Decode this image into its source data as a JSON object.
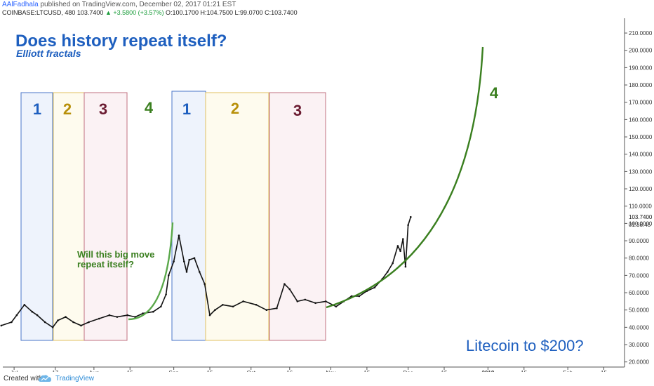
{
  "header": {
    "author": "AAlFadhala",
    "published": "published on TradingView.com, December 02, 2017 01:21 EST",
    "symbol": "COINBASE:LTCUSD, 480",
    "last": "103.7400",
    "change": "+3.5800 (+3.57%)",
    "ohlc": "O:100.1700 H:104.7500 L:99.0700 C:103.7400"
  },
  "footer": {
    "created_with": "Created with",
    "brand": "TradingView"
  },
  "colors": {
    "title": "#1e5fbf",
    "green": "#3a7f1f",
    "box1": "#4a76c8",
    "box2": "#e0c060",
    "box3": "#c07080",
    "label1": "#1e5fbf",
    "label2": "#b8900a",
    "label3": "#6a1a30",
    "label4": "#3a7f1f"
  },
  "chart_data": {
    "type": "line",
    "title": "Does history repeat itself?",
    "subtitle": "Elliott fractals",
    "annotations": {
      "question": [
        "Will this big move",
        "repeat itself?"
      ],
      "target": "Litecoin to $200?",
      "waves_first": [
        "1",
        "2",
        "3",
        "4"
      ],
      "waves_second": [
        "1",
        "2",
        "3",
        "4"
      ]
    },
    "x_ticks": [
      "Jul",
      "17",
      "Aug",
      "15",
      "Sep",
      "15",
      "Oct",
      "16",
      "Nov",
      "15",
      "Dec",
      "15",
      "2018",
      "15",
      "Feb",
      "15"
    ],
    "y_ticks": [
      "20.0000",
      "30.0000",
      "40.0000",
      "50.0000",
      "60.0000",
      "70.0000",
      "80.0000",
      "90.0000",
      "100.0000",
      "110.0000",
      "120.0000",
      "130.0000",
      "140.0000",
      "150.0000",
      "160.0000",
      "170.0000",
      "180.0000",
      "190.0000",
      "200.0000",
      "210.0000"
    ],
    "price_label": "103.7400",
    "countdown_label": "01:38:45",
    "ylim": [
      17,
      214
    ],
    "grid": false,
    "series": [
      {
        "x": [
          "2017-06-26",
          "2017-06-30",
          "2017-07-02",
          "2017-07-05",
          "2017-07-08",
          "2017-07-10",
          "2017-07-13",
          "2017-07-16",
          "2017-07-18",
          "2017-07-21",
          "2017-07-24",
          "2017-07-27",
          "2017-07-30",
          "2017-08-03",
          "2017-08-07",
          "2017-08-10",
          "2017-08-14",
          "2017-08-17",
          "2017-08-20",
          "2017-08-24",
          "2017-08-27",
          "2017-08-29",
          "2017-08-30",
          "2017-09-01",
          "2017-09-03",
          "2017-09-05",
          "2017-09-06",
          "2017-09-07",
          "2017-09-09",
          "2017-09-11",
          "2017-09-13",
          "2017-09-15",
          "2017-09-17",
          "2017-09-20",
          "2017-09-24",
          "2017-09-28",
          "2017-10-03",
          "2017-10-07",
          "2017-10-11",
          "2017-10-14",
          "2017-10-16",
          "2017-10-19",
          "2017-10-22",
          "2017-10-26",
          "2017-10-30",
          "2017-11-03",
          "2017-11-06",
          "2017-11-09",
          "2017-11-12",
          "2017-11-15",
          "2017-11-18",
          "2017-11-21",
          "2017-11-23",
          "2017-11-25",
          "2017-11-27",
          "2017-11-28",
          "2017-11-29",
          "2017-11-30",
          "2017-12-01",
          "2017-12-02"
        ],
        "y": [
          41,
          43,
          47,
          53,
          49,
          47,
          43,
          40,
          44,
          46,
          43,
          41,
          43,
          45,
          47,
          46,
          47,
          46,
          48,
          49,
          52,
          59,
          70,
          78,
          93,
          78,
          72,
          79,
          80,
          72,
          65,
          47,
          50,
          53,
          52,
          55,
          53,
          50,
          51,
          65,
          62,
          55,
          56,
          54,
          55,
          52,
          55,
          58,
          58,
          61,
          63,
          68,
          72,
          77,
          87,
          84,
          91,
          75,
          99,
          103.74
        ]
      }
    ]
  }
}
